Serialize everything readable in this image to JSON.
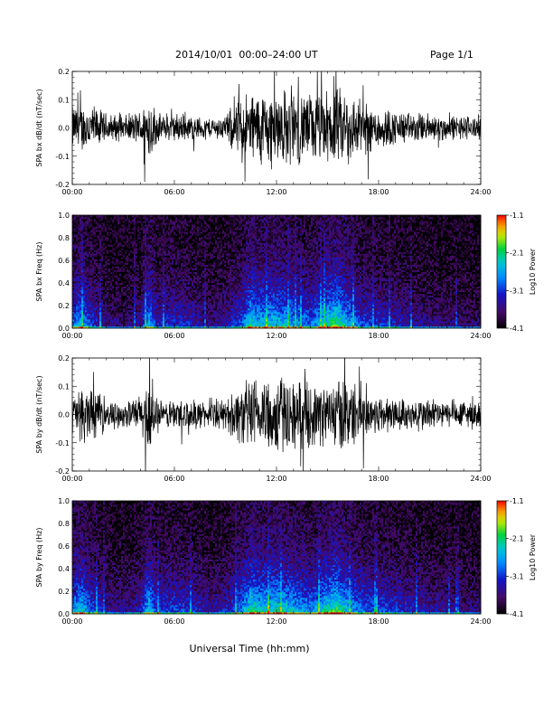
{
  "header": {
    "title": "2014/10/01  00:00–24:00 UT",
    "page": "Page 1/1"
  },
  "xaxis_label": "Universal Time (hh:mm)",
  "chart_data": [
    {
      "type": "line",
      "name": "bx-waveform",
      "ylabel": "SPA bx dB/dt (nT/sec)",
      "xlim": [
        0,
        24
      ],
      "ylim": [
        -0.2,
        0.2
      ],
      "x_ticks": [
        "00:00",
        "06:00",
        "12:00",
        "18:00",
        "24:00"
      ],
      "y_ticks": [
        {
          "value": 0.2,
          "label": "0.2"
        },
        {
          "value": 0.1,
          "label": "0.1"
        },
        {
          "value": 0.0,
          "label": "0.0"
        },
        {
          "value": -0.1,
          "label": "-0.1"
        },
        {
          "value": -0.2,
          "label": "-0.2"
        }
      ],
      "envelope": {
        "hours": [
          0,
          1,
          2,
          3,
          3.5,
          4,
          4.5,
          5,
          5.5,
          6,
          7,
          8,
          9,
          9.5,
          10,
          11,
          12,
          13,
          14,
          15,
          16,
          17,
          18,
          19,
          20,
          21,
          22,
          23,
          24
        ],
        "amplitude": [
          0.09,
          0.1,
          0.06,
          0.05,
          0.06,
          0.07,
          0.14,
          0.06,
          0.05,
          0.06,
          0.05,
          0.04,
          0.05,
          0.1,
          0.14,
          0.15,
          0.16,
          0.15,
          0.14,
          0.15,
          0.16,
          0.11,
          0.09,
          0.07,
          0.06,
          0.06,
          0.05,
          0.05,
          0.05
        ]
      }
    },
    {
      "type": "heatmap",
      "name": "bx-spectrogram",
      "ylabel": "SPA bx Freq (Hz)",
      "xlim": [
        0,
        24
      ],
      "ylim": [
        0,
        1.0
      ],
      "x_ticks": [
        "00:00",
        "06:00",
        "12:00",
        "18:00",
        "24:00"
      ],
      "y_ticks": [
        {
          "value": 1.0,
          "label": "1.0"
        },
        {
          "value": 0.8,
          "label": "0.8"
        },
        {
          "value": 0.6,
          "label": "0.6"
        },
        {
          "value": 0.4,
          "label": "0.4"
        },
        {
          "value": 0.2,
          "label": "0.2"
        },
        {
          "value": 0.0,
          "label": "0.0"
        }
      ],
      "colorbar": {
        "label": "Log10 Power",
        "range": [
          -4.1,
          -1.1
        ],
        "ticks": [
          "-1.1",
          "-2.1",
          "-3.1",
          "-4.1"
        ]
      },
      "activity": {
        "hours": [
          0,
          0.5,
          1,
          2,
          3,
          4,
          4.5,
          5,
          6,
          7,
          8,
          9,
          10,
          10.5,
          11,
          12,
          13,
          14,
          15,
          15.5,
          16,
          17,
          18,
          19,
          20,
          21,
          22,
          23,
          24
        ],
        "level": [
          0.45,
          0.6,
          0.4,
          0.2,
          0.15,
          0.25,
          0.6,
          0.3,
          0.35,
          0.3,
          0.2,
          0.25,
          0.45,
          0.7,
          0.6,
          0.65,
          0.55,
          0.45,
          0.7,
          0.8,
          0.65,
          0.4,
          0.35,
          0.3,
          0.25,
          0.2,
          0.2,
          0.15,
          0.15
        ]
      }
    },
    {
      "type": "line",
      "name": "by-waveform",
      "ylabel": "SPA by dB/dt (nT/sec)",
      "xlim": [
        0,
        24
      ],
      "ylim": [
        -0.2,
        0.2
      ],
      "x_ticks": [
        "00:00",
        "06:00",
        "12:00",
        "18:00",
        "24:00"
      ],
      "y_ticks": [
        {
          "value": 0.2,
          "label": "0.2"
        },
        {
          "value": 0.1,
          "label": "0.1"
        },
        {
          "value": 0.0,
          "label": "0.0"
        },
        {
          "value": -0.1,
          "label": "-0.1"
        },
        {
          "value": -0.2,
          "label": "-0.2"
        }
      ],
      "envelope": {
        "hours": [
          0,
          1,
          2,
          3,
          3.5,
          4,
          4.5,
          5,
          5.5,
          6,
          7,
          8,
          9,
          9.5,
          10,
          11,
          12,
          13,
          14,
          15,
          16,
          17,
          18,
          19,
          20,
          21,
          22,
          23,
          24
        ],
        "amplitude": [
          0.08,
          0.12,
          0.05,
          0.05,
          0.06,
          0.08,
          0.16,
          0.06,
          0.05,
          0.07,
          0.06,
          0.05,
          0.06,
          0.1,
          0.13,
          0.15,
          0.17,
          0.14,
          0.13,
          0.12,
          0.16,
          0.1,
          0.08,
          0.07,
          0.06,
          0.07,
          0.05,
          0.06,
          0.05
        ]
      }
    },
    {
      "type": "heatmap",
      "name": "by-spectrogram",
      "ylabel": "SPA by Freq (Hz)",
      "xlim": [
        0,
        24
      ],
      "ylim": [
        0,
        1.0
      ],
      "x_ticks": [
        "00:00",
        "06:00",
        "12:00",
        "18:00",
        "24:00"
      ],
      "y_ticks": [
        {
          "value": 1.0,
          "label": "1.0"
        },
        {
          "value": 0.8,
          "label": "0.8"
        },
        {
          "value": 0.6,
          "label": "0.6"
        },
        {
          "value": 0.4,
          "label": "0.4"
        },
        {
          "value": 0.2,
          "label": "0.2"
        },
        {
          "value": 0.0,
          "label": "0.0"
        }
      ],
      "colorbar": {
        "label": "Log10 Power",
        "range": [
          -4.1,
          -1.1
        ],
        "ticks": [
          "-1.1",
          "-2.1",
          "-3.1",
          "-4.1"
        ]
      },
      "activity": {
        "hours": [
          0,
          0.5,
          1,
          2,
          3,
          4,
          4.5,
          5,
          6,
          7,
          8,
          9,
          10,
          10.5,
          11,
          12,
          13,
          14,
          15,
          15.5,
          16,
          17,
          18,
          19,
          20,
          21,
          22,
          23,
          24
        ],
        "level": [
          0.5,
          0.65,
          0.45,
          0.25,
          0.2,
          0.3,
          0.65,
          0.35,
          0.4,
          0.35,
          0.25,
          0.3,
          0.5,
          0.75,
          0.65,
          0.7,
          0.6,
          0.5,
          0.7,
          0.8,
          0.65,
          0.45,
          0.4,
          0.35,
          0.3,
          0.25,
          0.25,
          0.2,
          0.2
        ]
      }
    }
  ]
}
